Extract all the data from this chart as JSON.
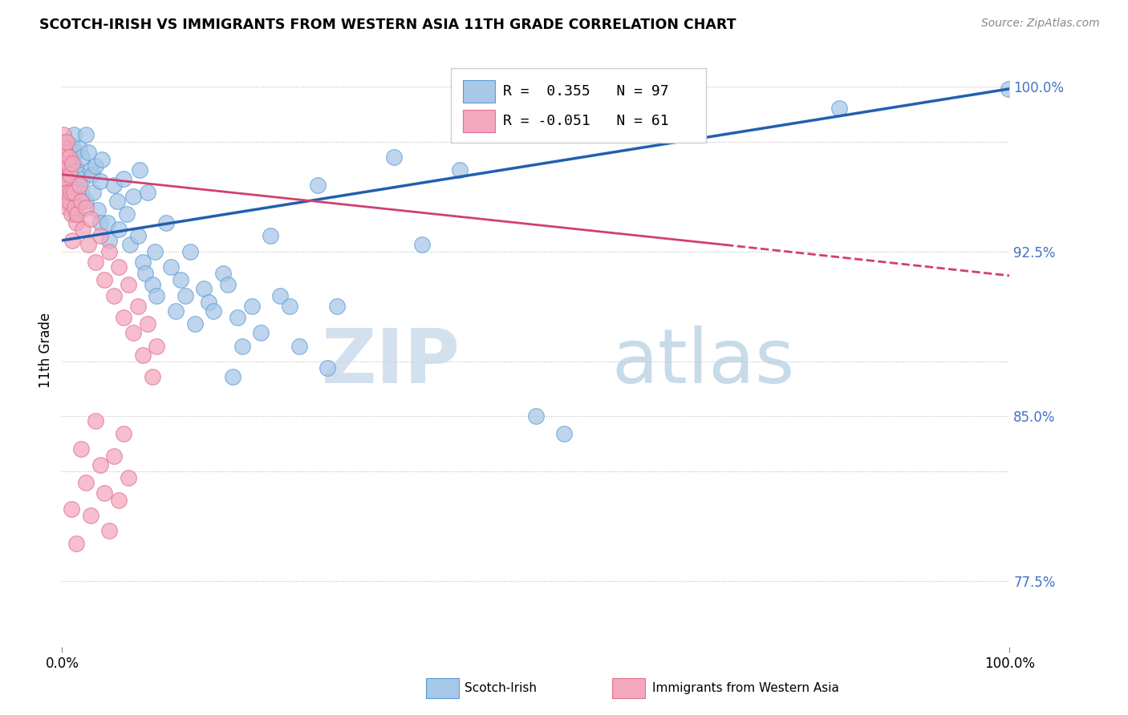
{
  "title": "SCOTCH-IRISH VS IMMIGRANTS FROM WESTERN ASIA 11TH GRADE CORRELATION CHART",
  "source": "Source: ZipAtlas.com",
  "ylabel": "11th Grade",
  "y_ticks": [
    0.775,
    0.825,
    0.85,
    0.875,
    0.925,
    0.975,
    1.0
  ],
  "y_tick_labels": [
    "77.5%",
    "",
    "85.0%",
    "",
    "92.5%",
    "",
    "100.0%"
  ],
  "y_gridlines": [
    0.775,
    0.825,
    0.85,
    0.875,
    0.925,
    0.975,
    1.0
  ],
  "xlim": [
    0.0,
    1.0
  ],
  "ylim": [
    0.745,
    1.015
  ],
  "r_blue": 0.355,
  "n_blue": 97,
  "r_pink": -0.051,
  "n_pink": 61,
  "legend_entries": [
    "Scotch-Irish",
    "Immigrants from Western Asia"
  ],
  "blue_color": "#a8c8e8",
  "blue_edge_color": "#5b9bd5",
  "blue_line_color": "#2060b0",
  "pink_color": "#f4a8be",
  "pink_edge_color": "#e07090",
  "pink_line_color": "#d04070",
  "watermark_zip": "ZIP",
  "watermark_atlas": "atlas",
  "background_color": "#ffffff",
  "scatter_blue": [
    [
      0.001,
      0.975
    ],
    [
      0.001,
      0.968
    ],
    [
      0.001,
      0.962
    ],
    [
      0.002,
      0.971
    ],
    [
      0.002,
      0.964
    ],
    [
      0.003,
      0.97
    ],
    [
      0.003,
      0.965
    ],
    [
      0.004,
      0.96
    ],
    [
      0.004,
      0.972
    ],
    [
      0.005,
      0.975
    ],
    [
      0.005,
      0.958
    ],
    [
      0.006,
      0.968
    ],
    [
      0.006,
      0.955
    ],
    [
      0.007,
      0.963
    ],
    [
      0.007,
      0.972
    ],
    [
      0.008,
      0.962
    ],
    [
      0.008,
      0.958
    ],
    [
      0.009,
      0.967
    ],
    [
      0.009,
      0.955
    ],
    [
      0.01,
      0.968
    ],
    [
      0.01,
      0.96
    ],
    [
      0.011,
      0.973
    ],
    [
      0.011,
      0.952
    ],
    [
      0.012,
      0.965
    ],
    [
      0.012,
      0.978
    ],
    [
      0.013,
      0.958
    ],
    [
      0.013,
      0.942
    ],
    [
      0.014,
      0.97
    ],
    [
      0.015,
      0.955
    ],
    [
      0.016,
      0.962
    ],
    [
      0.018,
      0.972
    ],
    [
      0.019,
      0.96
    ],
    [
      0.02,
      0.952
    ],
    [
      0.021,
      0.968
    ],
    [
      0.022,
      0.958
    ],
    [
      0.025,
      0.978
    ],
    [
      0.025,
      0.948
    ],
    [
      0.028,
      0.97
    ],
    [
      0.03,
      0.962
    ],
    [
      0.032,
      0.96
    ],
    [
      0.033,
      0.952
    ],
    [
      0.035,
      0.964
    ],
    [
      0.038,
      0.944
    ],
    [
      0.04,
      0.957
    ],
    [
      0.04,
      0.938
    ],
    [
      0.042,
      0.967
    ],
    [
      0.048,
      0.938
    ],
    [
      0.05,
      0.93
    ],
    [
      0.055,
      0.955
    ],
    [
      0.058,
      0.948
    ],
    [
      0.06,
      0.935
    ],
    [
      0.065,
      0.958
    ],
    [
      0.068,
      0.942
    ],
    [
      0.072,
      0.928
    ],
    [
      0.075,
      0.95
    ],
    [
      0.08,
      0.932
    ],
    [
      0.082,
      0.962
    ],
    [
      0.085,
      0.92
    ],
    [
      0.088,
      0.915
    ],
    [
      0.09,
      0.952
    ],
    [
      0.095,
      0.91
    ],
    [
      0.098,
      0.925
    ],
    [
      0.1,
      0.905
    ],
    [
      0.11,
      0.938
    ],
    [
      0.115,
      0.918
    ],
    [
      0.12,
      0.898
    ],
    [
      0.125,
      0.912
    ],
    [
      0.13,
      0.905
    ],
    [
      0.135,
      0.925
    ],
    [
      0.14,
      0.892
    ],
    [
      0.15,
      0.908
    ],
    [
      0.155,
      0.902
    ],
    [
      0.16,
      0.898
    ],
    [
      0.17,
      0.915
    ],
    [
      0.175,
      0.91
    ],
    [
      0.18,
      0.868
    ],
    [
      0.185,
      0.895
    ],
    [
      0.19,
      0.882
    ],
    [
      0.2,
      0.9
    ],
    [
      0.21,
      0.888
    ],
    [
      0.22,
      0.932
    ],
    [
      0.23,
      0.905
    ],
    [
      0.24,
      0.9
    ],
    [
      0.25,
      0.882
    ],
    [
      0.27,
      0.955
    ],
    [
      0.28,
      0.872
    ],
    [
      0.29,
      0.9
    ],
    [
      0.35,
      0.968
    ],
    [
      0.38,
      0.928
    ],
    [
      0.42,
      0.962
    ],
    [
      0.5,
      0.85
    ],
    [
      0.53,
      0.842
    ],
    [
      0.82,
      0.99
    ],
    [
      0.999,
      0.999
    ]
  ],
  "scatter_pink": [
    [
      0.001,
      0.978
    ],
    [
      0.001,
      0.968
    ],
    [
      0.001,
      0.96
    ],
    [
      0.002,
      0.972
    ],
    [
      0.002,
      0.962
    ],
    [
      0.003,
      0.955
    ],
    [
      0.003,
      0.97
    ],
    [
      0.004,
      0.958
    ],
    [
      0.004,
      0.948
    ],
    [
      0.005,
      0.975
    ],
    [
      0.005,
      0.952
    ],
    [
      0.006,
      0.965
    ],
    [
      0.006,
      0.945
    ],
    [
      0.007,
      0.968
    ],
    [
      0.007,
      0.948
    ],
    [
      0.008,
      0.96
    ],
    [
      0.009,
      0.952
    ],
    [
      0.01,
      0.942
    ],
    [
      0.011,
      0.965
    ],
    [
      0.011,
      0.93
    ],
    [
      0.012,
      0.952
    ],
    [
      0.013,
      0.945
    ],
    [
      0.015,
      0.938
    ],
    [
      0.016,
      0.942
    ],
    [
      0.018,
      0.955
    ],
    [
      0.02,
      0.948
    ],
    [
      0.022,
      0.935
    ],
    [
      0.025,
      0.945
    ],
    [
      0.028,
      0.928
    ],
    [
      0.03,
      0.94
    ],
    [
      0.035,
      0.92
    ],
    [
      0.04,
      0.932
    ],
    [
      0.045,
      0.912
    ],
    [
      0.05,
      0.925
    ],
    [
      0.055,
      0.905
    ],
    [
      0.06,
      0.918
    ],
    [
      0.065,
      0.895
    ],
    [
      0.07,
      0.91
    ],
    [
      0.075,
      0.888
    ],
    [
      0.08,
      0.9
    ],
    [
      0.085,
      0.878
    ],
    [
      0.09,
      0.892
    ],
    [
      0.095,
      0.868
    ],
    [
      0.1,
      0.882
    ],
    [
      0.01,
      0.808
    ],
    [
      0.015,
      0.792
    ],
    [
      0.02,
      0.835
    ],
    [
      0.025,
      0.82
    ],
    [
      0.03,
      0.805
    ],
    [
      0.035,
      0.848
    ],
    [
      0.04,
      0.828
    ],
    [
      0.045,
      0.815
    ],
    [
      0.05,
      0.798
    ],
    [
      0.055,
      0.832
    ],
    [
      0.06,
      0.812
    ],
    [
      0.065,
      0.842
    ],
    [
      0.07,
      0.822
    ]
  ],
  "blue_line": {
    "x0": 0.0,
    "y0": 0.93,
    "x1": 1.0,
    "y1": 0.999
  },
  "pink_line_solid": {
    "x0": 0.0,
    "y0": 0.96,
    "x1": 0.7,
    "y1": 0.928
  },
  "pink_line_dashed": {
    "x0": 0.7,
    "y0": 0.928,
    "x1": 1.0,
    "y1": 0.914
  }
}
